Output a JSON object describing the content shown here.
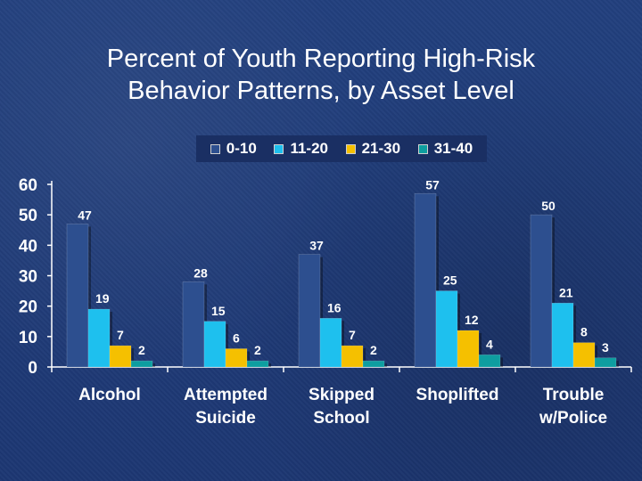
{
  "chart_data": {
    "type": "bar",
    "title_lines": [
      "Percent of Youth Reporting High-Risk",
      "Behavior Patterns, by Asset Level"
    ],
    "categories": [
      [
        "Alcohol"
      ],
      [
        "Attempted",
        "Suicide"
      ],
      [
        "Skipped",
        "School"
      ],
      [
        "Shoplifted"
      ],
      [
        "Trouble",
        "w/Police"
      ]
    ],
    "series": [
      {
        "name": "0-10",
        "color": "#2d4f8f",
        "values": [
          47,
          28,
          37,
          57,
          50
        ]
      },
      {
        "name": "11-20",
        "color": "#1ec0ee",
        "values": [
          19,
          15,
          16,
          25,
          21
        ]
      },
      {
        "name": "21-30",
        "color": "#f5c000",
        "values": [
          7,
          6,
          7,
          12,
          8
        ]
      },
      {
        "name": "31-40",
        "color": "#0e9ea0",
        "values": [
          2,
          2,
          2,
          4,
          3
        ]
      }
    ],
    "yticks": [
      0,
      10,
      20,
      30,
      40,
      50,
      60
    ],
    "ylim": [
      0,
      60
    ],
    "xlabel": "",
    "ylabel": "",
    "legend_position": "top"
  }
}
